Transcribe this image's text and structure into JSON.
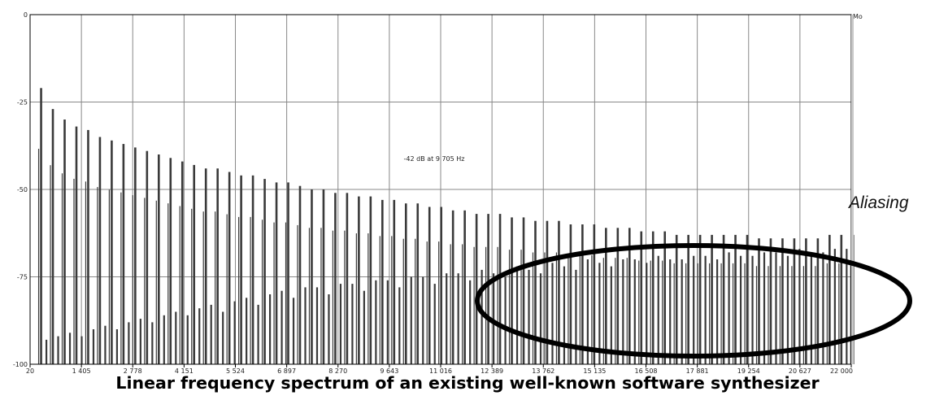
{
  "caption": "Linear frequency spectrum of an existing well-known software synthesizer",
  "right_label": "Aliasing",
  "annotation": "-42 dB at 9 705 Hz",
  "corner_label": "Mo",
  "colors": {
    "bars": "#3a3a3a",
    "grid": "#888888",
    "frame": "#000000",
    "ellipse": "#000000",
    "panel": "#c8c8c8"
  },
  "chart_data": {
    "type": "bar",
    "title": "",
    "xlabel": "",
    "ylabel": "",
    "xlim": [
      20,
      22000
    ],
    "ylim": [
      -100,
      0
    ],
    "grid": true,
    "x_tick_labels": [
      "20",
      "1 405",
      "2 778",
      "4 151",
      "5 524",
      "6 897",
      "8 270",
      "9 643",
      "11 016",
      "12 389",
      "13 762",
      "15 135",
      "16 508",
      "17 881",
      "19 254",
      "20 627",
      "22 000"
    ],
    "y_tick_labels": [
      "0",
      "-25",
      "-50",
      "-75",
      "-100"
    ],
    "y_ticks": [
      0,
      -25,
      -50,
      -75,
      -100
    ],
    "harmonics": {
      "fundamental_hz": 315,
      "levels_db": [
        -21,
        -27,
        -30,
        -32,
        -33,
        -35,
        -36,
        -37,
        -38,
        -39,
        -40,
        -41,
        -42,
        -43,
        -44,
        -44,
        -45,
        -46,
        -46,
        -47,
        -48,
        -48,
        -49,
        -50,
        -50,
        -51,
        -51,
        -52,
        -52,
        -53,
        -53,
        -54,
        -54,
        -55,
        -55,
        -56,
        -56,
        -57,
        -57,
        -57,
        -58,
        -58,
        -59,
        -59,
        -59,
        -60,
        -60,
        -60,
        -61,
        -61,
        -61,
        -62,
        -62,
        -62,
        -63,
        -63,
        -63,
        -63,
        -63,
        -63,
        -63,
        -64,
        -64,
        -64,
        -64,
        -64,
        -64,
        -63,
        -63,
        -63
      ]
    },
    "aliasing_levels_db": [
      -93,
      -92,
      -91,
      -92,
      -90,
      -89,
      -90,
      -88,
      -87,
      -88,
      -86,
      -85,
      -86,
      -84,
      -83,
      -85,
      -82,
      -81,
      -83,
      -80,
      -79,
      -81,
      -78,
      -78,
      -80,
      -77,
      -77,
      -79,
      -76,
      -76,
      -78,
      -75,
      -75,
      -77,
      -74,
      -74,
      -76,
      -73,
      -74,
      -75,
      -72,
      -73,
      -74,
      -71,
      -72,
      -73,
      -70,
      -71,
      -72,
      -70,
      -70,
      -71,
      -69,
      -70,
      -70,
      -69,
      -69,
      -70,
      -68,
      -69,
      -69,
      -68,
      -68,
      -69,
      -67,
      -68,
      -68,
      -67,
      -67,
      -68
    ]
  }
}
